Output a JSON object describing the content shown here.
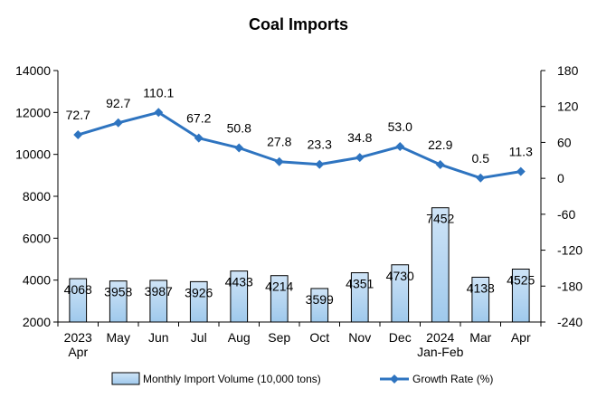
{
  "chart_data": {
    "type": "bar+line",
    "title": "Coal Imports",
    "categories": [
      "2023\nApr",
      "May",
      "Jun",
      "Jul",
      "Aug",
      "Sep",
      "Oct",
      "Nov",
      "Dec",
      "2024\nJan-Feb",
      "Mar",
      "Apr"
    ],
    "series": [
      {
        "name": "Monthly Import Volume (10,000 tons)",
        "type": "bar",
        "axis": "left",
        "values": [
          4068,
          3958,
          3987,
          3926,
          4433,
          4214,
          3599,
          4351,
          4730,
          7452,
          4138,
          4525
        ],
        "labels": [
          "4068",
          "3958",
          "3987",
          "3926",
          "4433",
          "4214",
          "3599",
          "4351",
          "4730",
          "7452",
          "4138",
          "4525"
        ]
      },
      {
        "name": "Growth Rate (%)",
        "type": "line",
        "axis": "right",
        "values": [
          72.7,
          92.7,
          110.1,
          67.2,
          50.8,
          27.8,
          23.3,
          34.8,
          53.0,
          22.9,
          0.5,
          11.3
        ],
        "labels": [
          "72.7",
          "92.7",
          "110.1",
          "67.2",
          "50.8",
          "27.8",
          "23.3",
          "34.8",
          "53.0",
          "22.9",
          "0.5",
          "11.3"
        ]
      }
    ],
    "y_left": {
      "min": 2000,
      "max": 14000,
      "ticks": [
        "2000",
        "4000",
        "6000",
        "8000",
        "10000",
        "12000",
        "14000"
      ]
    },
    "y_right": {
      "min": -240,
      "max": 180,
      "ticks": [
        "-240",
        "-180",
        "-120",
        "-60",
        "0",
        "60",
        "120",
        "180"
      ]
    },
    "grid": false,
    "legend_position": "bottom",
    "colors": {
      "bar_fill_top": "#cfe4f7",
      "bar_fill_bottom": "#9fc9ec",
      "bar_stroke": "#000000",
      "line": "#2e74c0"
    }
  }
}
